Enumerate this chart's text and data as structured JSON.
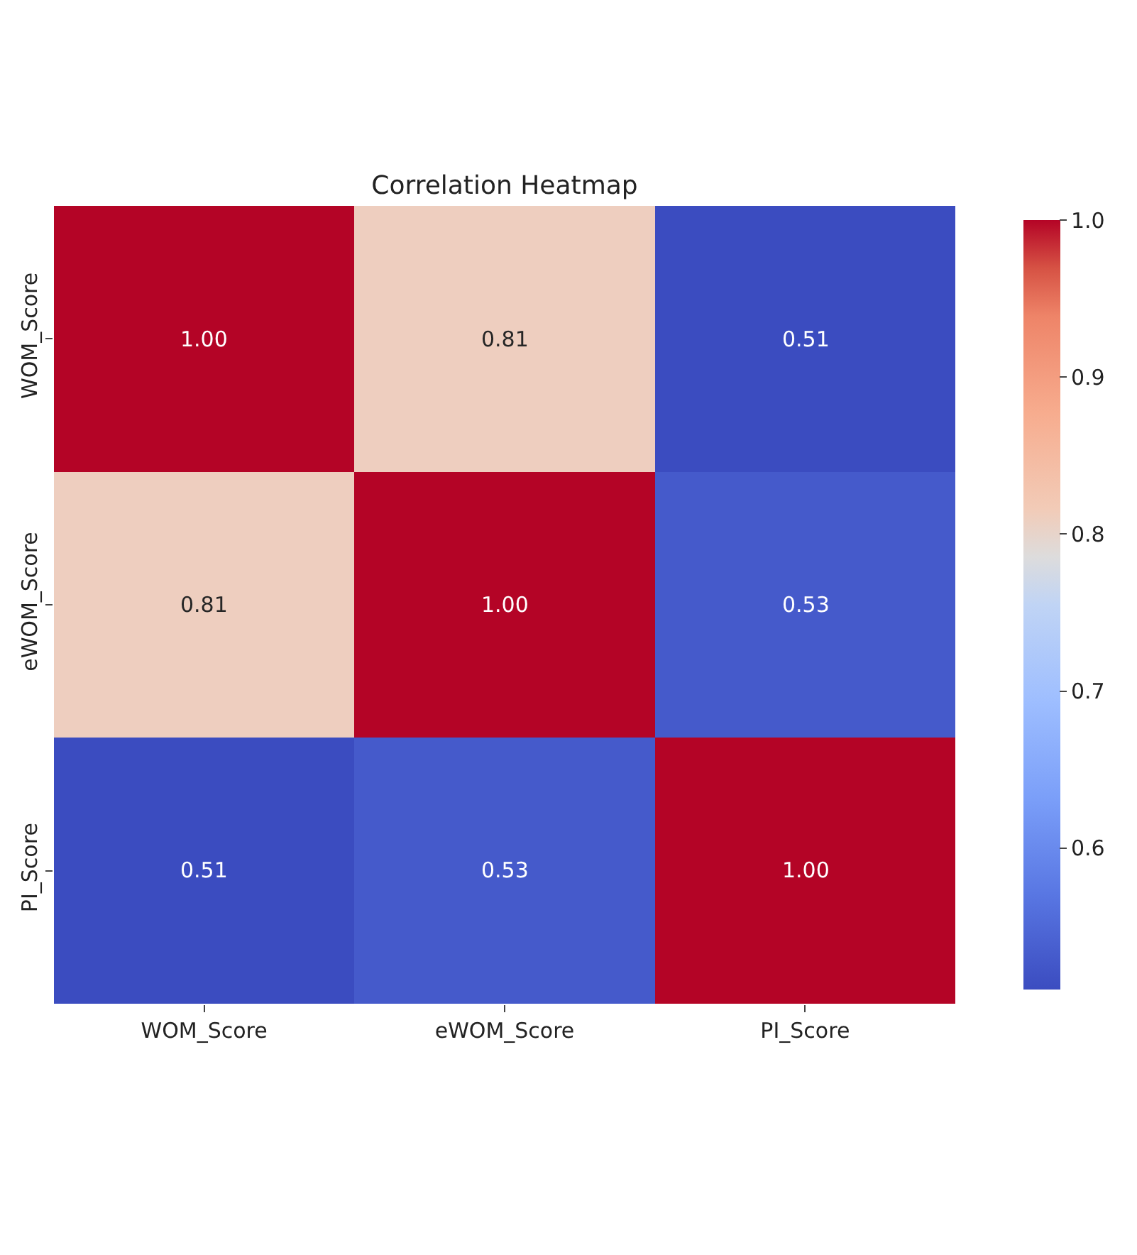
{
  "chart_data": {
    "type": "heatmap",
    "title": "Correlation Heatmap",
    "categories": [
      "WOM_Score",
      "eWOM_Score",
      "PI_Score"
    ],
    "y_categories": [
      "WOM_Score",
      "eWOM_Score",
      "PI_Score"
    ],
    "cells": [
      [
        1.0,
        0.81,
        0.51
      ],
      [
        0.81,
        1.0,
        0.53
      ],
      [
        0.51,
        0.53,
        1.0
      ]
    ],
    "cell_labels": [
      [
        "1.00",
        "0.81",
        "0.51"
      ],
      [
        "0.81",
        "1.00",
        "0.53"
      ],
      [
        "0.51",
        "0.53",
        "1.00"
      ]
    ],
    "clim": [
      0.51,
      1.0
    ],
    "cticks": [
      0.6,
      0.7,
      0.8,
      0.9,
      {
        "value": 1,
        "label": "1.0"
      }
    ]
  }
}
